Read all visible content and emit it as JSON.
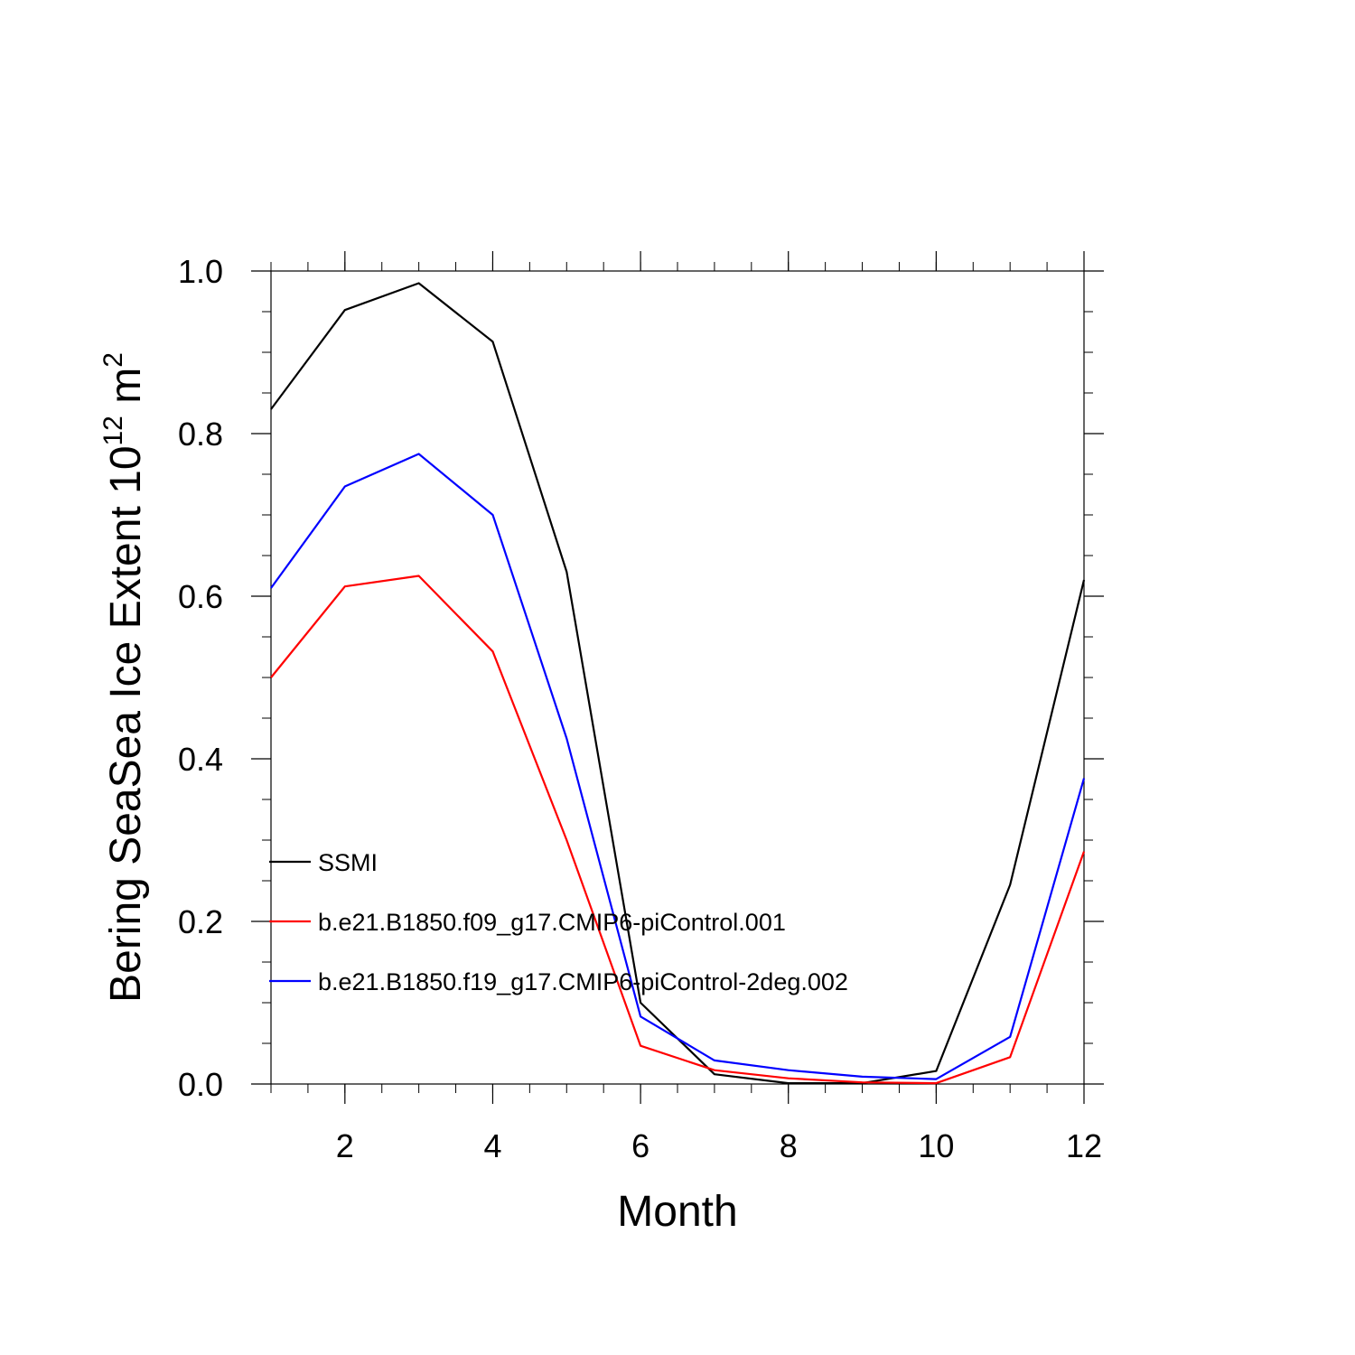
{
  "chart_data": {
    "type": "line",
    "title": "",
    "xlabel": "Month",
    "ylabel_main": "Bering SeaSea Ice Extent 10",
    "ylabel_sup1": "12",
    "ylabel_unit": " m",
    "ylabel_sup2": "2",
    "xlim": [
      1,
      12
    ],
    "ylim": [
      0,
      1.0
    ],
    "xticks": [
      2,
      4,
      6,
      8,
      10,
      12
    ],
    "xtick_labels": [
      "2",
      "4",
      "6",
      "8",
      "10",
      "12"
    ],
    "yticks": [
      0,
      0.2,
      0.4,
      0.6,
      0.8,
      1.0
    ],
    "ytick_labels": [
      "0.0",
      "0.2",
      "0.4",
      "0.6",
      "0.8",
      "1.0"
    ],
    "legend_position": "left-lower",
    "x": [
      1,
      2,
      3,
      4,
      5,
      6,
      7,
      8,
      9,
      10,
      11,
      12
    ],
    "series": [
      {
        "name": "SSMI",
        "color": "#000000",
        "values": [
          0.83,
          0.952,
          0.985,
          0.913,
          0.63,
          0.1,
          0.012,
          0.001,
          0.001,
          0.016,
          0.245,
          0.62
        ]
      },
      {
        "name": "b.e21.B1850.f09_g17.CMIP6-piControl.001",
        "color": "#ff0000",
        "values": [
          0.5,
          0.612,
          0.625,
          0.532,
          0.3,
          0.047,
          0.017,
          0.007,
          0.002,
          0.001,
          0.033,
          0.286
        ]
      },
      {
        "name": "b.e21.B1850.f19_g17.CMIP6-piControl-2deg.002",
        "color": "#0000ff",
        "values": [
          0.61,
          0.735,
          0.775,
          0.7,
          0.425,
          0.083,
          0.029,
          0.017,
          0.009,
          0.006,
          0.058,
          0.376
        ]
      }
    ]
  }
}
